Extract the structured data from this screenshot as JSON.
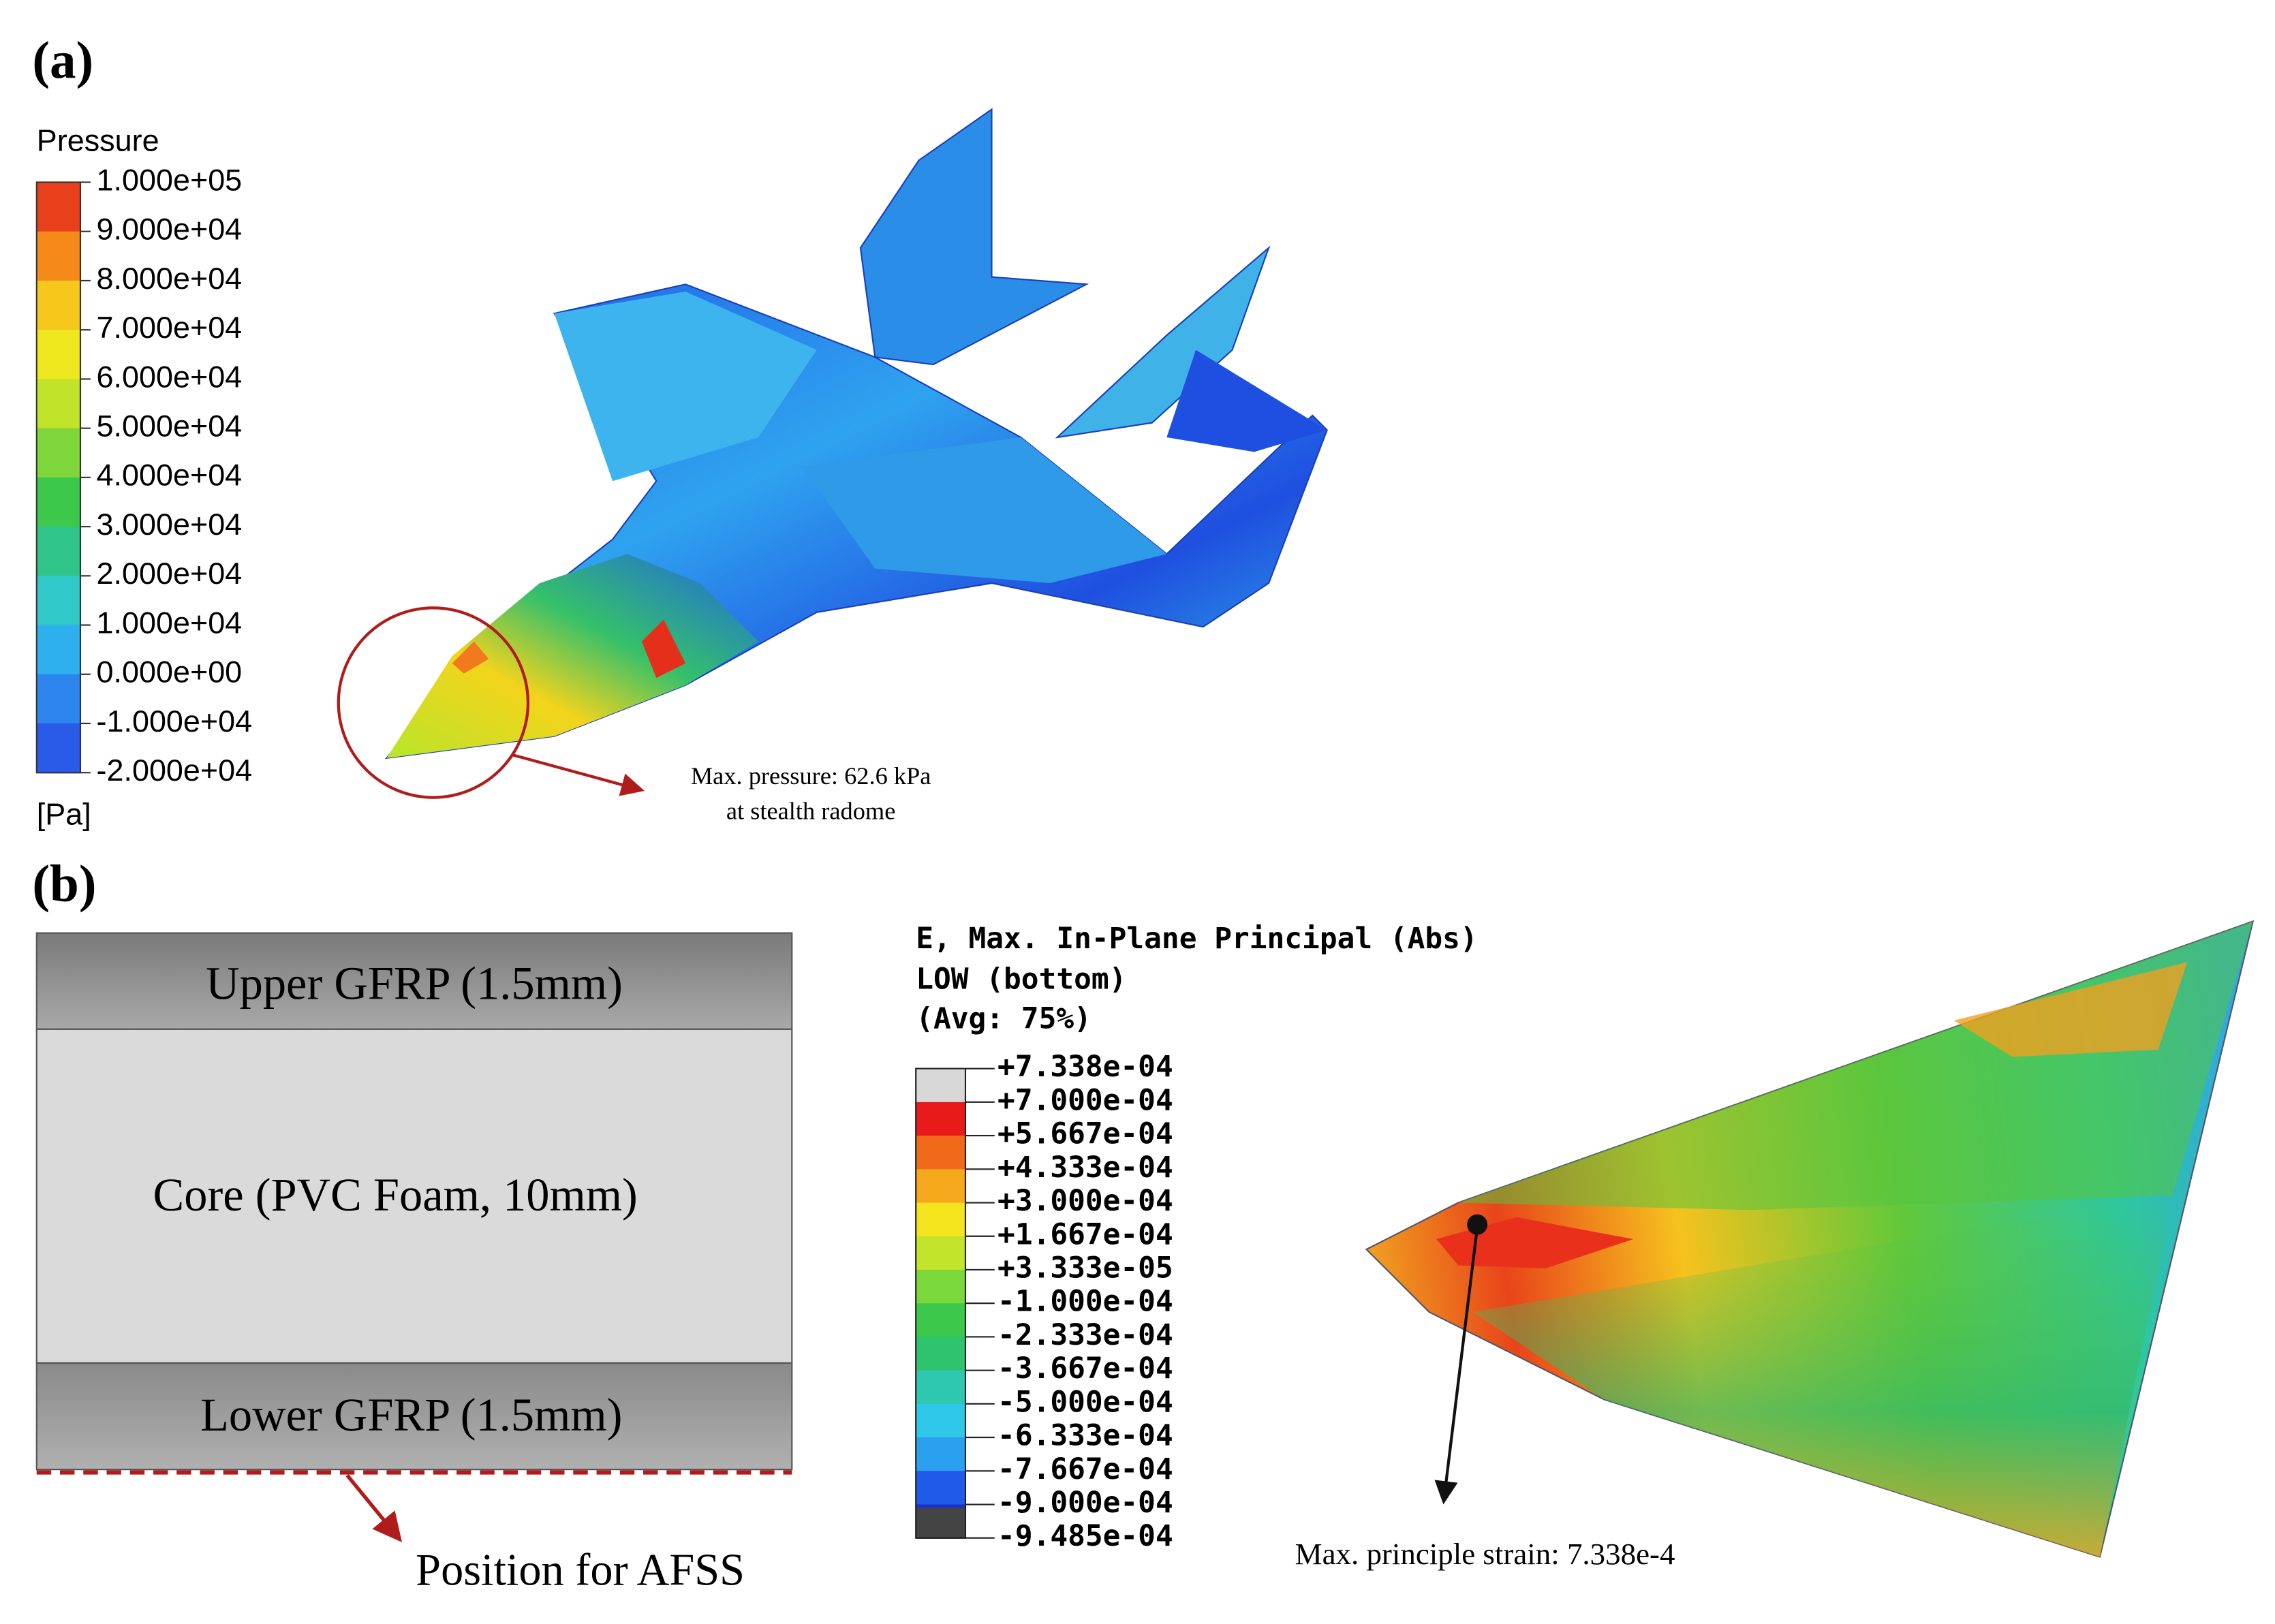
{
  "panel_a": {
    "label": "(a)",
    "legend_title": "Pressure",
    "legend_labels": [
      "1.000e+05",
      "9.000e+04",
      "8.000e+04",
      "7.000e+04",
      "6.000e+04",
      "5.000e+04",
      "4.000e+04",
      "3.000e+04",
      "2.000e+04",
      "1.000e+04",
      "0.000e+00",
      "-1.000e+04",
      "-2.000e+04"
    ],
    "unit": "[Pa]",
    "annotation": [
      "Max. pressure: 62.6 kPa",
      "at stealth radome"
    ]
  },
  "panel_b": {
    "label": "(b)",
    "layers": [
      "Upper GFRP (1.5mm)",
      "Core (PVC Foam, 10mm)",
      "Lower GFRP (1.5mm)"
    ],
    "position_label": "Position for AFSS",
    "legend_title": [
      "E, Max. In-Plane Principal (Abs)",
      "LOW (bottom)",
      "(Avg: 75%)"
    ],
    "legend_labels": [
      "+7.338e-04",
      "+7.000e-04",
      "+5.667e-04",
      "+4.333e-04",
      "+3.000e-04",
      "+1.667e-04",
      "+3.333e-05",
      "-1.000e-04",
      "-2.333e-04",
      "-3.667e-04",
      "-5.000e-04",
      "-6.333e-04",
      "-7.667e-04",
      "-9.000e-04",
      "-9.485e-04"
    ],
    "annotation": "Max. principle strain: 7.338e-4"
  }
}
